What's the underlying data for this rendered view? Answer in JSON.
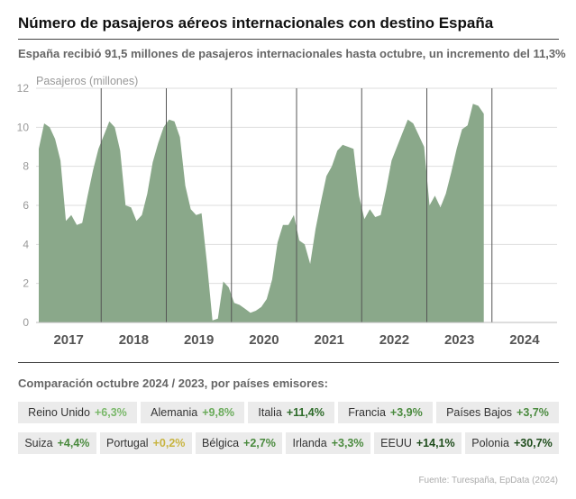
{
  "title": "Número de pasajeros aéreos internacionales con destino España",
  "subtitle": "España recibió 91,5 millones de pasajeros internacionales hasta octubre, un incremento del 11,3%",
  "chart_data": {
    "type": "area",
    "ylabel": "Pasajeros (millones)",
    "ylim": [
      0,
      12
    ],
    "yticks": [
      0,
      2,
      4,
      6,
      8,
      10,
      12
    ],
    "grid": true,
    "fill_color": "#8aa88a",
    "years": [
      "2017",
      "2018",
      "2019",
      "2020",
      "2021",
      "2022",
      "2023",
      "2024"
    ],
    "values": [
      8.9,
      10.2,
      10.0,
      9.4,
      8.3,
      5.2,
      5.5,
      5.0,
      5.1,
      6.5,
      7.8,
      8.9,
      9.6,
      10.3,
      10.0,
      8.8,
      6.0,
      5.9,
      5.2,
      5.5,
      6.6,
      8.2,
      9.2,
      10.0,
      10.4,
      10.3,
      9.5,
      7.0,
      5.8,
      5.5,
      5.6,
      3.0,
      0.1,
      0.2,
      2.1,
      1.8,
      1.0,
      0.9,
      0.7,
      0.5,
      0.6,
      0.8,
      1.2,
      2.2,
      4.1,
      5.0,
      5.0,
      5.5,
      4.2,
      4.0,
      3.0,
      4.8,
      6.2,
      7.5,
      8.0,
      8.8,
      9.1,
      9.0,
      8.9,
      6.5,
      5.3,
      5.8,
      5.4,
      5.5,
      6.8,
      8.3,
      9.0,
      9.7,
      10.4,
      10.2,
      9.6,
      9.0,
      6.0,
      6.5,
      5.9,
      6.6,
      7.7,
      8.9,
      9.9,
      10.1,
      11.2,
      11.1,
      10.7
    ]
  },
  "comparison": {
    "title": "Comparación octubre 2024 / 2023, por países emisores:",
    "row1": [
      {
        "country": "Reino Unido",
        "value": "+6,3%",
        "color": "#7ab86a"
      },
      {
        "country": "Alemania",
        "value": "+9,8%",
        "color": "#6aab5a"
      },
      {
        "country": "Italia",
        "value": "+11,4%",
        "color": "#2e6b2a"
      },
      {
        "country": "Francia",
        "value": "+3,9%",
        "color": "#4a8a3e"
      },
      {
        "country": "Países Bajos",
        "value": "+3,7%",
        "color": "#4a8a3e"
      }
    ],
    "row2": [
      {
        "country": "Suiza",
        "value": "+4,4%",
        "color": "#4a8a3e"
      },
      {
        "country": "Portugal",
        "value": "+0,2%",
        "color": "#c8b440"
      },
      {
        "country": "Bélgica",
        "value": "+2,7%",
        "color": "#4a8a3e"
      },
      {
        "country": "Irlanda",
        "value": "+3,3%",
        "color": "#4a8a3e"
      },
      {
        "country": "EEUU",
        "value": "+14,1%",
        "color": "#1f4d1c"
      },
      {
        "country": "Polonia",
        "value": "+30,7%",
        "color": "#1f4d1c"
      }
    ]
  },
  "source": "Fuente: Turespaña, EpData (2024)"
}
